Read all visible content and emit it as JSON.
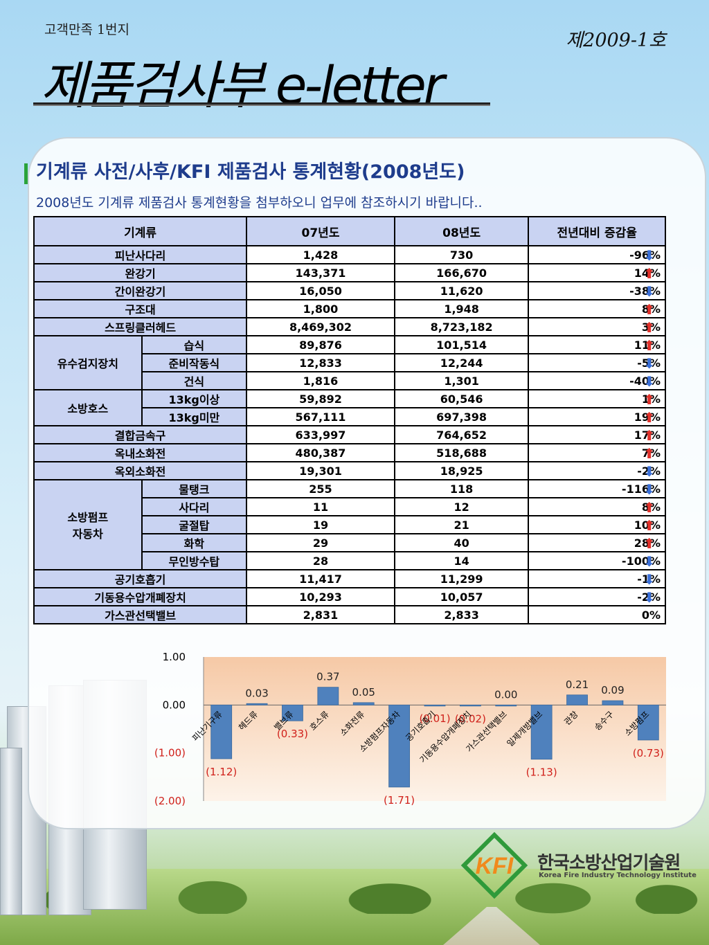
{
  "header": {
    "kicker": "고객만족 1번지",
    "issue": "제2009-1호",
    "title": "제품검사부 e-letter"
  },
  "section": {
    "title": "기계류 사전/사후/KFI 제품검사 통계현황(2008년도)",
    "subtitle": "2008년도 기계류 제품검사 통계현황을 첨부하오니 업무에 참조하시기 바랍니다.."
  },
  "table": {
    "headers": [
      "기계류",
      "07년도",
      "08년도",
      "전년대비 증감율"
    ],
    "rows": [
      {
        "group": "",
        "item": "피난사다리",
        "y07": "1,428",
        "y08": "730",
        "change": "-96%",
        "dir": "down"
      },
      {
        "group": "",
        "item": "완강기",
        "y07": "143,371",
        "y08": "166,670",
        "change": "14%",
        "dir": "up"
      },
      {
        "group": "",
        "item": "간이완강기",
        "y07": "16,050",
        "y08": "11,620",
        "change": "-38%",
        "dir": "down"
      },
      {
        "group": "",
        "item": "구조대",
        "y07": "1,800",
        "y08": "1,948",
        "change": "8%",
        "dir": "up"
      },
      {
        "group": "",
        "item": "스프링클러헤드",
        "y07": "8,469,302",
        "y08": "8,723,182",
        "change": "3%",
        "dir": "up"
      },
      {
        "group": "유수검지장치",
        "item": "습식",
        "y07": "89,876",
        "y08": "101,514",
        "change": "11%",
        "dir": "up"
      },
      {
        "group": "유수검지장치",
        "item": "준비작동식",
        "y07": "12,833",
        "y08": "12,244",
        "change": "-5%",
        "dir": "down"
      },
      {
        "group": "유수검지장치",
        "item": "건식",
        "y07": "1,816",
        "y08": "1,301",
        "change": "-40%",
        "dir": "down"
      },
      {
        "group": "소방호스",
        "item": "13kg이상",
        "y07": "59,892",
        "y08": "60,546",
        "change": "1%",
        "dir": "up"
      },
      {
        "group": "소방호스",
        "item": "13kg미만",
        "y07": "567,111",
        "y08": "697,398",
        "change": "19%",
        "dir": "up"
      },
      {
        "group": "",
        "item": "결합금속구",
        "y07": "633,997",
        "y08": "764,652",
        "change": "17%",
        "dir": "up"
      },
      {
        "group": "",
        "item": "옥내소화전",
        "y07": "480,387",
        "y08": "518,688",
        "change": "7%",
        "dir": "up"
      },
      {
        "group": "",
        "item": "옥외소화전",
        "y07": "19,301",
        "y08": "18,925",
        "change": "-2%",
        "dir": "down"
      },
      {
        "group": "소방펌프 자동차",
        "item": "물탱크",
        "y07": "255",
        "y08": "118",
        "change": "-116%",
        "dir": "down"
      },
      {
        "group": "소방펌프 자동차",
        "item": "사다리",
        "y07": "11",
        "y08": "12",
        "change": "8%",
        "dir": "up"
      },
      {
        "group": "소방펌프 자동차",
        "item": "굴절탑",
        "y07": "19",
        "y08": "21",
        "change": "10%",
        "dir": "up"
      },
      {
        "group": "소방펌프 자동차",
        "item": "화학",
        "y07": "29",
        "y08": "40",
        "change": "28%",
        "dir": "up"
      },
      {
        "group": "소방펌프 자동차",
        "item": "무인방수탑",
        "y07": "28",
        "y08": "14",
        "change": "-100%",
        "dir": "down"
      },
      {
        "group": "",
        "item": "공기호흡기",
        "y07": "11,417",
        "y08": "11,299",
        "change": "-1%",
        "dir": "down"
      },
      {
        "group": "",
        "item": "기동용수압개폐장치",
        "y07": "10,293",
        "y08": "10,057",
        "change": "-2%",
        "dir": "down"
      },
      {
        "group": "",
        "item": "가스관선택밸브",
        "y07": "2,831",
        "y08": "2,833",
        "change": "0%",
        "dir": "none"
      }
    ]
  },
  "chart_data": {
    "type": "bar",
    "categories": [
      "피난기구류",
      "헤드류",
      "밸브류",
      "호스류",
      "소화전류",
      "소방펌프자동차",
      "공기호흡기",
      "기동용수압개폐장치",
      "가스관선택밸브",
      "일제개방밸브",
      "관창",
      "송수구",
      "소방펌프"
    ],
    "values": [
      -1.12,
      0.03,
      -0.33,
      0.37,
      0.05,
      -1.71,
      -0.01,
      -0.02,
      0.0,
      -1.13,
      0.21,
      0.09,
      -0.73
    ],
    "value_labels": [
      "(1.12)",
      "0.03",
      "(0.33)",
      "0.37",
      "0.05",
      "(1.71)",
      "(0.01)",
      "(0.02)",
      "0.00",
      "(1.13)",
      "0.21",
      "0.09",
      "(0.73)"
    ],
    "ytick_labels": [
      "1.00",
      "0.00",
      "(1.00)",
      "(2.00)"
    ],
    "yticks": [
      1,
      0,
      -1,
      -2
    ],
    "ylim": [
      -2,
      1
    ],
    "grid": false,
    "colors": {
      "bar": "#4f81bd",
      "negative_label": "#d0201a",
      "plot_bg_top": "#f6c9a6",
      "plot_bg_bottom": "#fdf3e9"
    }
  },
  "logo": {
    "mark": "KFI",
    "name_ko": "한국소방산업기술원",
    "name_en": "Korea Fire Industry Technology Institute",
    "colors": {
      "orange": "#f08a1c",
      "green": "#2f9a3a"
    }
  }
}
